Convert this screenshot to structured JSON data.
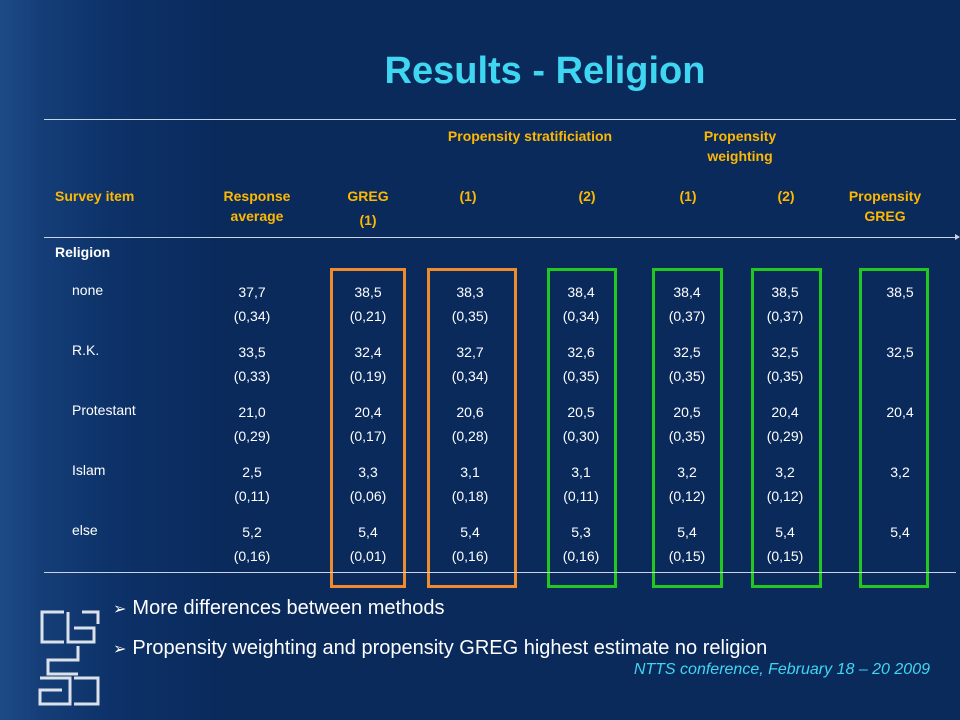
{
  "title": "Results - Religion",
  "group_headers": {
    "stratification": "Propensity stratificiation",
    "weighting": "Propensity weighting"
  },
  "columns": {
    "survey_item": "Survey item",
    "response_average": "Response average",
    "greg": "GREG",
    "greg_sub": "(1)",
    "strat_1": "(1)",
    "strat_2": "(2)",
    "weight_1": "(1)",
    "weight_2": "(2)",
    "prop_greg": "Propensity GREG"
  },
  "section": "Religion",
  "rows": [
    {
      "label": "none",
      "cells": [
        [
          "37,7",
          "(0,34)"
        ],
        [
          "38,5",
          "(0,21)"
        ],
        [
          "38,3",
          "(0,35)"
        ],
        [
          "38,4",
          "(0,34)"
        ],
        [
          "38,4",
          "(0,37)"
        ],
        [
          "38,5",
          "(0,37)"
        ],
        [
          "38,5",
          ""
        ]
      ]
    },
    {
      "label": "R.K.",
      "cells": [
        [
          "33,5",
          "(0,33)"
        ],
        [
          "32,4",
          "(0,19)"
        ],
        [
          "32,7",
          "(0,34)"
        ],
        [
          "32,6",
          "(0,35)"
        ],
        [
          "32,5",
          "(0,35)"
        ],
        [
          "32,5",
          "(0,35)"
        ],
        [
          "32,5",
          ""
        ]
      ]
    },
    {
      "label": "Protestant",
      "cells": [
        [
          "21,0",
          "(0,29)"
        ],
        [
          "20,4",
          "(0,17)"
        ],
        [
          "20,6",
          "(0,28)"
        ],
        [
          "20,5",
          "(0,30)"
        ],
        [
          "20,5",
          "(0,35)"
        ],
        [
          "20,4",
          "(0,29)"
        ],
        [
          "20,4",
          ""
        ]
      ]
    },
    {
      "label": "Islam",
      "cells": [
        [
          "2,5",
          "(0,11)"
        ],
        [
          "3,3",
          "(0,06)"
        ],
        [
          "3,1",
          "(0,18)"
        ],
        [
          "3,1",
          "(0,11)"
        ],
        [
          "3,2",
          "(0,12)"
        ],
        [
          "3,2",
          "(0,12)"
        ],
        [
          "3,2",
          ""
        ]
      ]
    },
    {
      "label": "else",
      "cells": [
        [
          "5,2",
          "(0,16)"
        ],
        [
          "5,4",
          "(0,01)"
        ],
        [
          "5,4",
          "(0,16)"
        ],
        [
          "5,3",
          "(0,16)"
        ],
        [
          "5,4",
          "(0,15)"
        ],
        [
          "5,4",
          "(0,15)"
        ],
        [
          "5,4",
          ""
        ]
      ]
    }
  ],
  "bullets": [
    "More differences between methods",
    "Propensity weighting and propensity GREG highest estimate no religion"
  ],
  "footer": "NTTS conference, February 18 – 20 2009",
  "colors": {
    "background": "#0a2a5c",
    "title": "#3fd6f2",
    "header_orange": "#ffb800",
    "box_orange": "#ef8a2d",
    "box_green": "#22c71f"
  },
  "logo_icon": "cbs-logo"
}
